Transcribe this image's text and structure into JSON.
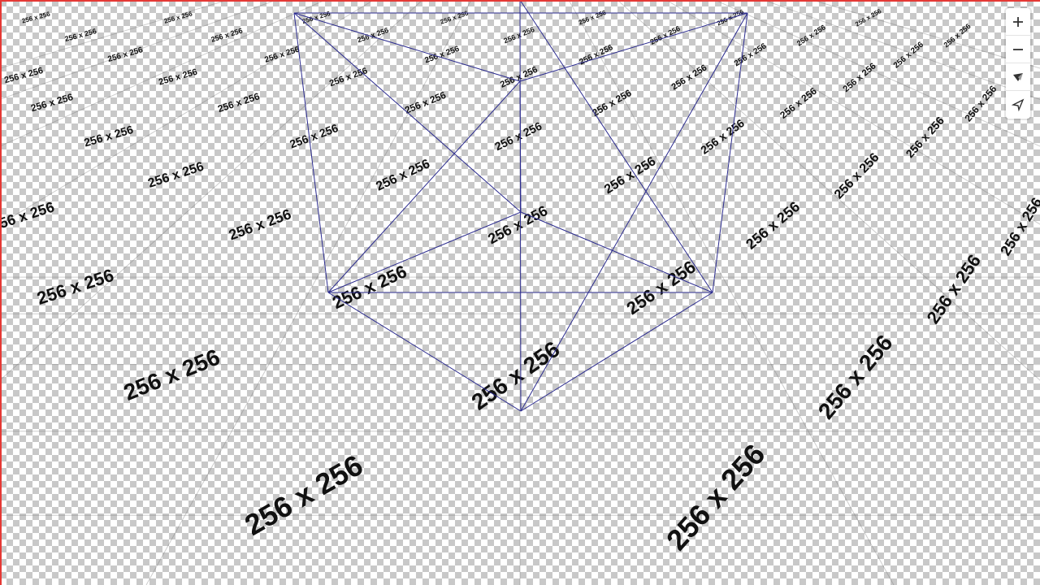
{
  "map": {
    "tile_label": "256 x 256",
    "checker_colors": [
      "#ffffff",
      "#c8c8c8"
    ],
    "grid_line_color": "#707070",
    "wireframe_color": "#2b2b8f",
    "frame_color": "#e53935"
  },
  "controls": {
    "zoom_in": "zoom-in-icon",
    "zoom_out": "zoom-out-icon",
    "compass": "compass-icon",
    "pitch": "pitch-icon"
  }
}
